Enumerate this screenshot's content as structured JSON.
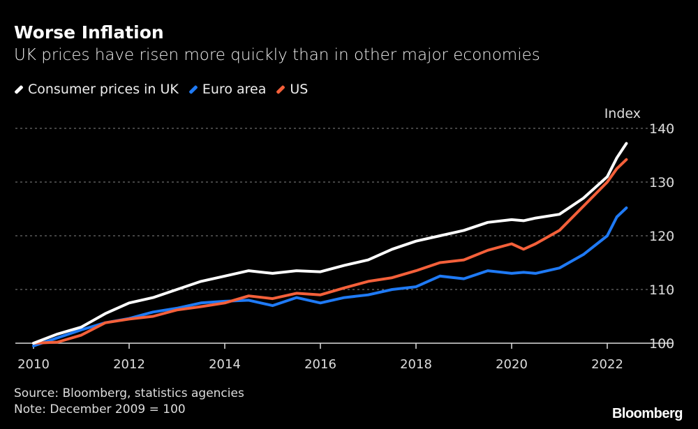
{
  "title": "Worse Inflation",
  "subtitle": "UK prices have risen more quickly than in other major economies",
  "source": "Source: Bloomberg, statistics agencies",
  "note": "Note: December 2009 = 100",
  "logo": "Bloomberg",
  "chart_data": {
    "type": "line",
    "ylabel": "Index",
    "ylim": [
      100,
      140
    ],
    "yticks": [
      100,
      110,
      120,
      130,
      140
    ],
    "xlim": [
      2009.6,
      2023.3
    ],
    "xticks": [
      2010,
      2012,
      2014,
      2016,
      2018,
      2020,
      2022
    ],
    "grid": "horizontal dotted",
    "legend": "top-left",
    "x": [
      2010,
      2010.5,
      2011,
      2011.5,
      2012,
      2012.5,
      2013,
      2013.5,
      2014,
      2014.5,
      2015,
      2015.5,
      2016,
      2016.5,
      2017,
      2017.5,
      2018,
      2018.5,
      2019,
      2019.5,
      2020,
      2020.25,
      2020.5,
      2021,
      2021.5,
      2022,
      2022.2,
      2022.4
    ],
    "series": [
      {
        "name": "Consumer prices in UK",
        "color": "#ffffff",
        "values": [
          100,
          101.7,
          103,
          105.5,
          107.5,
          108.5,
          110,
          111.5,
          112.5,
          113.5,
          113,
          113.5,
          113.3,
          114.5,
          115.5,
          117.5,
          119,
          120,
          121,
          122.5,
          123,
          122.8,
          123.3,
          124,
          127,
          131,
          134.5,
          137.2
        ]
      },
      {
        "name": "Euro area",
        "color": "#1f7af5",
        "values": [
          99.5,
          101,
          102.5,
          103.8,
          104.6,
          105.8,
          106.5,
          107.5,
          107.8,
          108,
          107,
          108.5,
          107.5,
          108.5,
          109,
          110,
          110.5,
          112.5,
          112,
          113.5,
          113,
          113.2,
          113,
          114,
          116.5,
          120,
          123.5,
          125.2
        ]
      },
      {
        "name": "US",
        "color": "#f4603a",
        "values": [
          100,
          100.2,
          101.5,
          103.8,
          104.5,
          105,
          106.2,
          106.8,
          107.5,
          108.8,
          108.3,
          109.3,
          109,
          110.3,
          111.5,
          112.2,
          113.5,
          115,
          115.5,
          117.3,
          118.5,
          117.5,
          118.5,
          121,
          125.5,
          130,
          132.5,
          134.2
        ]
      }
    ]
  }
}
